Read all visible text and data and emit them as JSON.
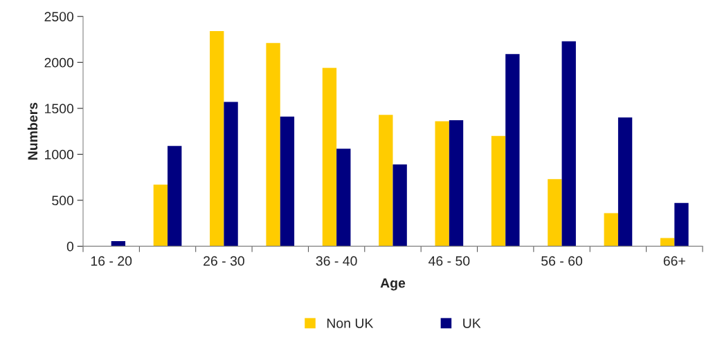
{
  "chart_data": {
    "type": "bar",
    "xlabel": "Age",
    "ylabel": "Numbers",
    "categories": [
      "16 - 20",
      null,
      "26 - 30",
      null,
      "36 - 40",
      null,
      "46 - 50",
      null,
      "56 - 60",
      null,
      "66+"
    ],
    "series": [
      {
        "name": "Non UK",
        "color": "#ffcc00",
        "values": [
          null,
          670,
          2340,
          2210,
          1940,
          1430,
          1360,
          1200,
          730,
          360,
          90
        ]
      },
      {
        "name": "UK",
        "color": "#000080",
        "values": [
          55,
          1090,
          1570,
          1410,
          1060,
          890,
          1370,
          2090,
          2230,
          1400,
          470
        ]
      }
    ],
    "ylim": [
      0,
      2500
    ],
    "yticks": [
      0,
      500,
      1000,
      1500,
      2000,
      2500
    ],
    "grid": false,
    "legend": "bottom"
  }
}
